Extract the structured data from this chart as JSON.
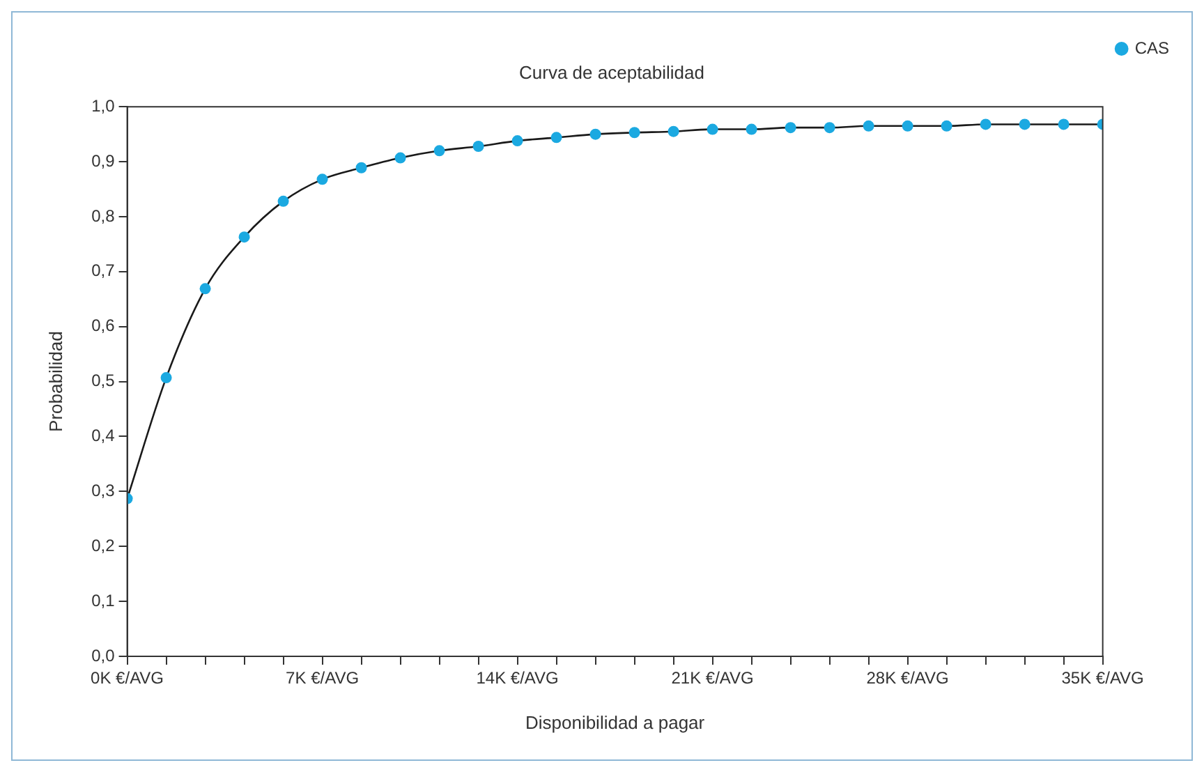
{
  "chart_data": {
    "type": "scatter",
    "title": "Curva de aceptabilidad",
    "xlabel": "Disponibilidad a pagar",
    "ylabel": "Probabilidad",
    "x": [
      0,
      1.4,
      2.8,
      4.2,
      5.6,
      7,
      8.4,
      9.8,
      11.2,
      12.6,
      14,
      15.4,
      16.8,
      18.2,
      19.6,
      21,
      22.4,
      23.8,
      25.2,
      26.6,
      28,
      29.4,
      30.8,
      32.2,
      33.6,
      35
    ],
    "series": [
      {
        "name": "CAS",
        "color": "#1ba9e1",
        "marker": "circle",
        "values": [
          0.287,
          0.507,
          0.669,
          0.763,
          0.828,
          0.868,
          0.889,
          0.907,
          0.92,
          0.928,
          0.938,
          0.944,
          0.95,
          0.953,
          0.955,
          0.959,
          0.959,
          0.962,
          0.962,
          0.965,
          0.965,
          0.965,
          0.968,
          0.968,
          0.968,
          0.968
        ]
      },
      {
        "type": "line",
        "color": "#1a1a1a",
        "marker": "none",
        "line_style": "solid",
        "values": [
          0.287,
          0.507,
          0.669,
          0.763,
          0.828,
          0.868,
          0.889,
          0.907,
          0.92,
          0.928,
          0.938,
          0.944,
          0.95,
          0.953,
          0.955,
          0.959,
          0.959,
          0.962,
          0.962,
          0.965,
          0.965,
          0.965,
          0.968,
          0.968,
          0.968,
          0.968
        ]
      }
    ],
    "xlim": [
      0,
      35
    ],
    "xticks": [
      {
        "value": 0,
        "label": "0K €/AVG"
      },
      {
        "value": 1.4,
        "label": null
      },
      {
        "value": 2.8,
        "label": null
      },
      {
        "value": 4.2,
        "label": null
      },
      {
        "value": 5.6,
        "label": null
      },
      {
        "value": 7,
        "label": "7K €/AVG"
      },
      {
        "value": 8.4,
        "label": null
      },
      {
        "value": 9.8,
        "label": null
      },
      {
        "value": 11.2,
        "label": null
      },
      {
        "value": 12.6,
        "label": null
      },
      {
        "value": 14,
        "label": "14K €/AVG"
      },
      {
        "value": 15.4,
        "label": null
      },
      {
        "value": 16.8,
        "label": null
      },
      {
        "value": 18.2,
        "label": null
      },
      {
        "value": 19.6,
        "label": null
      },
      {
        "value": 21,
        "label": "21K €/AVG"
      },
      {
        "value": 22.4,
        "label": null
      },
      {
        "value": 23.8,
        "label": null
      },
      {
        "value": 25.2,
        "label": null
      },
      {
        "value": 26.6,
        "label": null
      },
      {
        "value": 28,
        "label": "28K €/AVG"
      },
      {
        "value": 29.4,
        "label": null
      },
      {
        "value": 30.8,
        "label": null
      },
      {
        "value": 32.2,
        "label": null
      },
      {
        "value": 33.6,
        "label": null
      },
      {
        "value": 35,
        "label": "35K €/AVG"
      }
    ],
    "ylim": [
      0,
      1
    ],
    "yticks": [
      {
        "value": 0,
        "label": "0,0"
      },
      {
        "value": 0.1,
        "label": "0,1"
      },
      {
        "value": 0.2,
        "label": "0,2"
      },
      {
        "value": 0.3,
        "label": "0,3"
      },
      {
        "value": 0.4,
        "label": "0,4"
      },
      {
        "value": 0.5,
        "label": "0,5"
      },
      {
        "value": 0.6,
        "label": "0,6"
      },
      {
        "value": 0.7,
        "label": "0,7"
      },
      {
        "value": 0.8,
        "label": "0,8"
      },
      {
        "value": 0.9,
        "label": "0,9"
      },
      {
        "value": 1,
        "label": "1,0"
      }
    ],
    "grid": false,
    "legend": "top right"
  }
}
